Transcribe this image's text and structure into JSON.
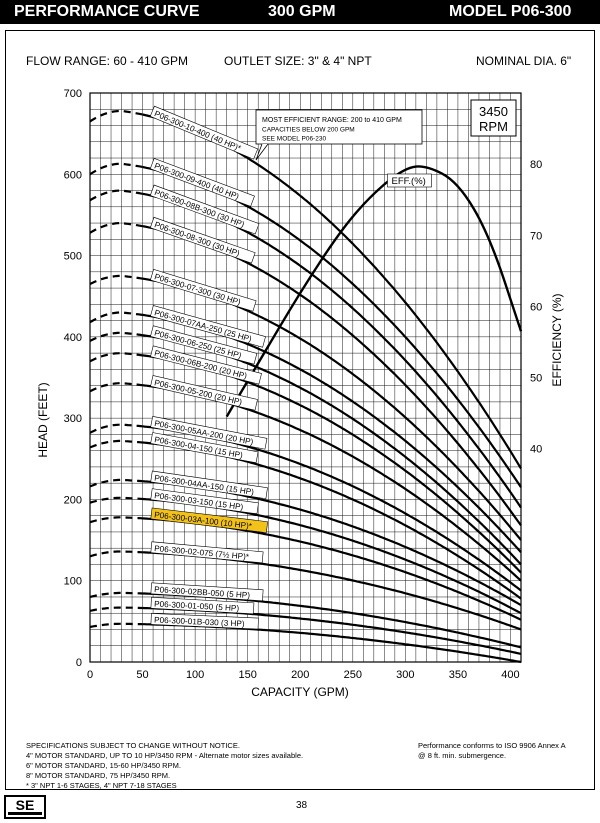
{
  "header": {
    "left": "PERFORMANCE CURVE",
    "center": "300 GPM",
    "right": "MODEL  P06-300"
  },
  "info": {
    "flow_range": "FLOW RANGE: 60 - 410 GPM",
    "outlet_size": "OUTLET SIZE: 3\" & 4\" NPT",
    "nominal_dia": "NOMINAL DIA. 6\""
  },
  "rpm": {
    "value": "3450",
    "unit": "RPM"
  },
  "note": {
    "line1": "MOST EFFICIENT RANGE: 200 to 410 GPM",
    "line2": "CAPACITIES BELOW 200 GPM",
    "line3": "SEE  MODEL P06-230"
  },
  "footer": {
    "left": "SPECIFICATIONS SUBJECT TO CHANGE WITHOUT NOTICE.\n4\" MOTOR STANDARD, UP TO 10 HP/3450 RPM - Alternate motor sizes available.\n6\" MOTOR STANDARD, 15-60 HP/3450 RPM.\n8\" MOTOR STANDARD, 75 HP/3450 RPM.\n* 3\" NPT 1-6 STAGES, 4\" NPT 7-18 STAGES",
    "right": "Performance conforms to ISO 9906 Annex A\n@ 8 ft. min. submergence."
  },
  "page_number": "38",
  "logo_text": "SE",
  "colors": {
    "highlight": "#f2c21b",
    "curve": "#000000"
  },
  "chart_data": {
    "type": "line",
    "xlabel": "CAPACITY (GPM)",
    "ylabel": "HEAD (FEET)",
    "y2label": "EFFICIENCY (%)",
    "xlim": [
      0,
      410
    ],
    "ylim": [
      0,
      700
    ],
    "y2lim": [
      10,
      90
    ],
    "x_ticks": [
      0,
      50,
      100,
      150,
      200,
      250,
      300,
      350,
      400
    ],
    "y_ticks": [
      0,
      100,
      200,
      300,
      400,
      500,
      600,
      700
    ],
    "y2_ticks": [
      40,
      50,
      60,
      70,
      80
    ],
    "grid": true,
    "efficiency": {
      "name": "EFF.(%)",
      "x": [
        130,
        160,
        200,
        240,
        270,
        300,
        320,
        350,
        380,
        410
      ],
      "y": [
        44.5,
        52,
        62,
        71,
        76,
        79.5,
        79.8,
        77.5,
        70,
        56.5
      ]
    },
    "series": [
      {
        "name": "P06-300-10-400 (40 HP)*",
        "shutoff": 665,
        "peak": 678,
        "end": 238,
        "highlight": false
      },
      {
        "name": "P06-300-09-400 (40 HP)",
        "shutoff": 600,
        "peak": 613,
        "end": 215,
        "highlight": false
      },
      {
        "name": "P06-300-08B-300 (30 HP)",
        "shutoff": 568,
        "peak": 580,
        "end": 190,
        "highlight": false
      },
      {
        "name": "P06-300-08-300 (30 HP)",
        "shutoff": 528,
        "peak": 540,
        "end": 168,
        "highlight": false
      },
      {
        "name": "P06-300-07-300 (30 HP)",
        "shutoff": 465,
        "peak": 475,
        "end": 150,
        "highlight": false
      },
      {
        "name": "P06-300-07AA-250 (25 HP)",
        "shutoff": 418,
        "peak": 430,
        "end": 135,
        "highlight": false
      },
      {
        "name": "P06-300-06-250 (25 HP)",
        "shutoff": 395,
        "peak": 405,
        "end": 120,
        "highlight": false
      },
      {
        "name": "P06-300-06B-200 (20 HP)",
        "shutoff": 370,
        "peak": 380,
        "end": 110,
        "highlight": false
      },
      {
        "name": "P06-300-05-200 (20 HP)",
        "shutoff": 333,
        "peak": 343,
        "end": 100,
        "highlight": false
      },
      {
        "name": "P06-300-05AA-200 (20 HP)",
        "shutoff": 282,
        "peak": 292,
        "end": 88,
        "highlight": false
      },
      {
        "name": "P06-300-04-150 (15 HP)",
        "shutoff": 264,
        "peak": 272,
        "end": 78,
        "highlight": false
      },
      {
        "name": "P06-300-04AA-150 (15 HP)",
        "shutoff": 216,
        "peak": 224,
        "end": 70,
        "highlight": false
      },
      {
        "name": "P06-300-03-150 (15 HP)",
        "shutoff": 196,
        "peak": 202,
        "end": 60,
        "highlight": false
      },
      {
        "name": "P06-300-03A-100 (10 HP)*",
        "shutoff": 172,
        "peak": 178,
        "end": 52,
        "highlight": true
      },
      {
        "name": "P06-300-02-075 (7½ HP)*",
        "shutoff": 130,
        "peak": 136,
        "end": 40,
        "highlight": false
      },
      {
        "name": "P06-300-02BB-050 (5 HP)",
        "shutoff": 80,
        "peak": 85,
        "end": 18,
        "highlight": false
      },
      {
        "name": "P06-300-01-050 (5 HP)",
        "shutoff": 63,
        "peak": 67,
        "end": 10,
        "highlight": false
      },
      {
        "name": "P06-300-01B-030 (3 HP)",
        "shutoff": 43,
        "peak": 47,
        "end": 0,
        "highlight": false
      }
    ]
  }
}
